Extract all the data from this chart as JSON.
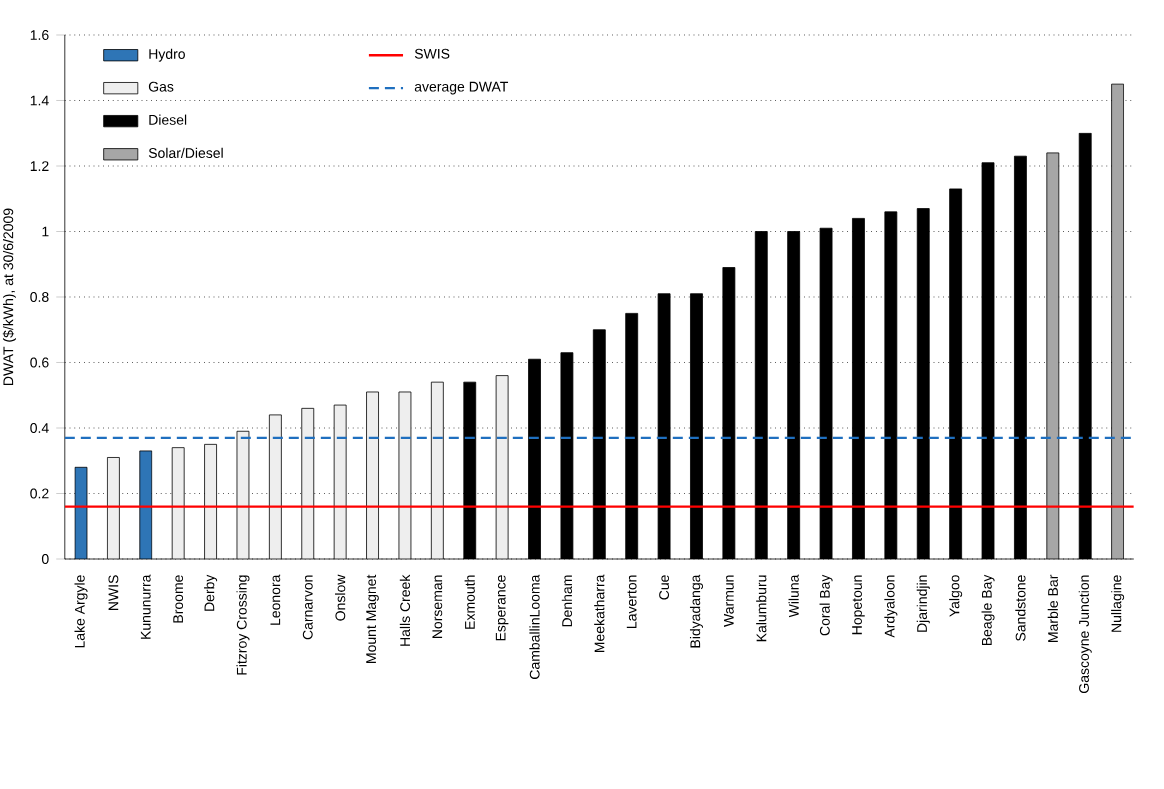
{
  "chart_data": {
    "type": "bar",
    "ylabel": "DWAT ($/kWh), at 30/6/2009",
    "categories": [
      "Lake Argyle",
      "NWIS",
      "Kununurra",
      "Broome",
      "Derby",
      "Fitzroy Crossing",
      "Leonora",
      "Carnarvon",
      "Onslow",
      "Mount Magnet",
      "Halls Creek",
      "Norseman",
      "Exmouth",
      "Esperance",
      "CamballinLooma",
      "Denham",
      "Meekatharra",
      "Laverton",
      "Cue",
      "Bidyadanga",
      "Warmun",
      "Kalumburu",
      "Wiluna",
      "Coral Bay",
      "Hopetoun",
      "Ardyaloon",
      "Djarindjin",
      "Yalgoo",
      "Beagle Bay",
      "Sandstone",
      "Marble Bar",
      "Gascoyne Junction",
      "Nullagine"
    ],
    "series": [
      {
        "name": "Hydro",
        "color": "#2e75b6",
        "values": [
          0.28,
          null,
          0.33,
          null,
          null,
          null,
          null,
          null,
          null,
          null,
          null,
          null,
          null,
          null,
          null,
          null,
          null,
          null,
          null,
          null,
          null,
          null,
          null,
          null,
          null,
          null,
          null,
          null,
          null,
          null,
          null,
          null,
          null
        ]
      },
      {
        "name": "Gas",
        "color": "#eeeeee",
        "values": [
          null,
          0.31,
          null,
          0.34,
          0.35,
          0.39,
          0.44,
          0.46,
          0.47,
          0.51,
          0.51,
          0.54,
          null,
          0.56,
          null,
          null,
          null,
          null,
          null,
          null,
          null,
          null,
          null,
          null,
          null,
          null,
          null,
          null,
          null,
          null,
          null,
          null,
          null
        ]
      },
      {
        "name": "Diesel",
        "color": "#000000",
        "values": [
          null,
          null,
          null,
          null,
          null,
          null,
          null,
          null,
          null,
          null,
          null,
          null,
          0.54,
          null,
          0.61,
          0.63,
          0.7,
          0.75,
          0.81,
          0.81,
          0.89,
          1.0,
          1.0,
          1.01,
          1.04,
          1.06,
          1.07,
          1.13,
          1.21,
          1.23,
          null,
          1.3,
          null
        ]
      },
      {
        "name": "Solar/Diesel",
        "color": "#a6a6a6",
        "values": [
          null,
          null,
          null,
          null,
          null,
          null,
          null,
          null,
          null,
          null,
          null,
          null,
          null,
          null,
          null,
          null,
          null,
          null,
          null,
          null,
          null,
          null,
          null,
          null,
          null,
          null,
          null,
          null,
          null,
          null,
          1.24,
          null,
          1.45
        ]
      }
    ],
    "ref_lines": [
      {
        "axis": "y",
        "value": 0.16,
        "label": "SWIS",
        "color": "#ff0000",
        "line_style": "solid"
      },
      {
        "axis": "y",
        "value": 0.37,
        "label": "average DWAT",
        "color": "#1f6fbf",
        "line_style": "dashed"
      }
    ],
    "ylim": [
      0,
      1.6
    ],
    "yticks": [
      0,
      0.2,
      0.4,
      0.6,
      0.8,
      1,
      1.2,
      1.4,
      1.6
    ],
    "grid": "y",
    "legend": "top left"
  }
}
